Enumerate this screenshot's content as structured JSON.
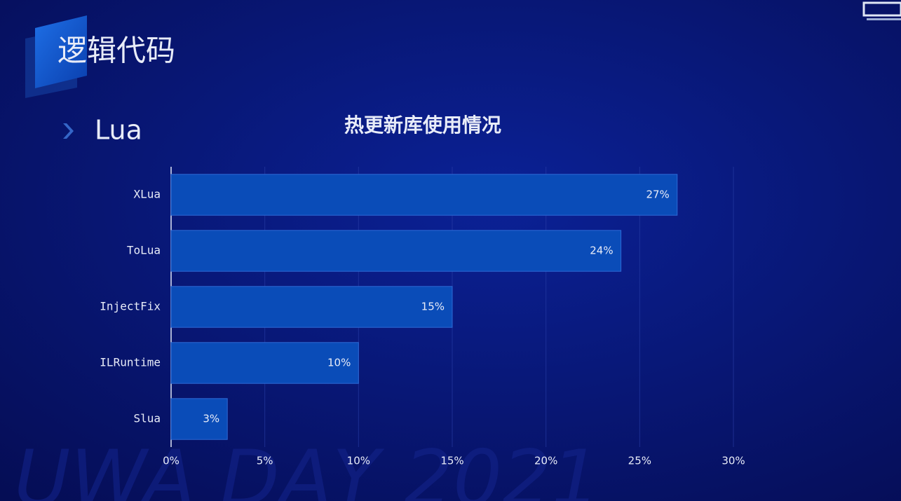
{
  "slide": {
    "title": "逻辑代码",
    "section": "Lua",
    "watermark": "UWA DAY 2021"
  },
  "chart_data": {
    "type": "bar",
    "orientation": "horizontal",
    "title": "热更新库使用情况",
    "categories": [
      "XLua",
      "ToLua",
      "InjectFix",
      "ILRuntime",
      "Slua"
    ],
    "values": [
      27,
      24,
      15,
      10,
      3
    ],
    "value_labels": [
      "27%",
      "24%",
      "15%",
      "10%",
      "3%"
    ],
    "color": "#0a4cb8",
    "xlim": [
      0,
      30
    ],
    "xticks": [
      {
        "value": 0,
        "label": "0%"
      },
      {
        "value": 5,
        "label": "5%"
      },
      {
        "value": 10,
        "label": "10%"
      },
      {
        "value": 15,
        "label": "15%"
      },
      {
        "value": 20,
        "label": "20%"
      },
      {
        "value": 25,
        "label": "25%"
      },
      {
        "value": 30,
        "label": "30%"
      }
    ],
    "grid": true
  }
}
